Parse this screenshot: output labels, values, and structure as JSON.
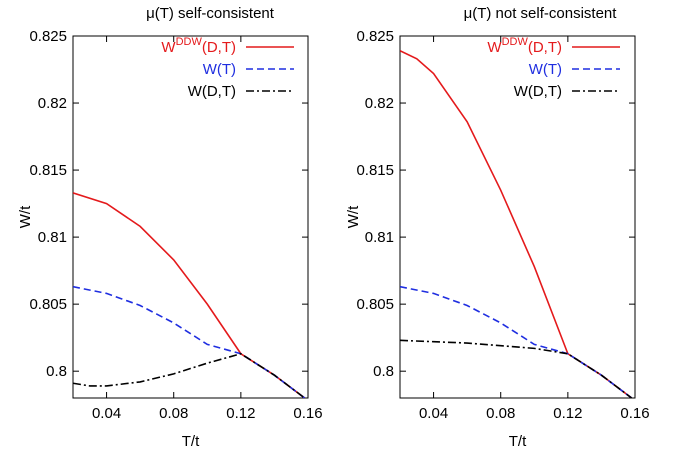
{
  "chart_data": [
    {
      "type": "line",
      "title": "μ(T) self-consistent",
      "xlabel": "T/t",
      "ylabel": "W/t",
      "xlim": [
        0.02,
        0.16
      ],
      "ylim": [
        0.798,
        0.825
      ],
      "xticks": [
        0.04,
        0.08,
        0.12,
        0.16
      ],
      "xtick_labels": [
        "0.04",
        "0.08",
        "0.12",
        "0.16"
      ],
      "yticks": [
        0.8,
        0.805,
        0.81,
        0.815,
        0.82,
        0.825
      ],
      "ytick_labels": [
        "0.8",
        "0.805",
        "0.81",
        "0.815",
        "0.82",
        "0.825"
      ],
      "grid": false,
      "legend_position": "top-right",
      "series": [
        {
          "name": "W^{DDW}(D,T)",
          "name_base": "W",
          "name_sup": "DDW",
          "name_tail": "(D,T)",
          "color": "#e41a1c",
          "style": "solid",
          "points": [
            [
              0.02,
              0.8133
            ],
            [
              0.04,
              0.8125
            ],
            [
              0.06,
              0.8108
            ],
            [
              0.08,
              0.8083
            ],
            [
              0.1,
              0.805
            ],
            [
              0.12,
              0.8013
            ],
            [
              0.14,
              0.7997
            ],
            [
              0.158,
              0.798
            ]
          ]
        },
        {
          "name": "W(T)",
          "color": "#1f2ee0",
          "style": "dashed",
          "points": [
            [
              0.02,
              0.8063
            ],
            [
              0.04,
              0.8058
            ],
            [
              0.06,
              0.8049
            ],
            [
              0.08,
              0.8036
            ],
            [
              0.1,
              0.802
            ],
            [
              0.12,
              0.8013
            ],
            [
              0.14,
              0.7997
            ],
            [
              0.158,
              0.798
            ]
          ]
        },
        {
          "name": "W(D,T)",
          "color": "#000000",
          "style": "dashdot",
          "points": [
            [
              0.02,
              0.7991
            ],
            [
              0.03,
              0.7989
            ],
            [
              0.04,
              0.7989
            ],
            [
              0.06,
              0.7992
            ],
            [
              0.08,
              0.7998
            ],
            [
              0.1,
              0.8006
            ],
            [
              0.12,
              0.8013
            ],
            [
              0.14,
              0.7997
            ],
            [
              0.158,
              0.798
            ]
          ]
        }
      ]
    },
    {
      "type": "line",
      "title": "μ(T) not self-consistent",
      "xlabel": "T/t",
      "ylabel": "W/t",
      "xlim": [
        0.02,
        0.16
      ],
      "ylim": [
        0.798,
        0.825
      ],
      "xticks": [
        0.04,
        0.08,
        0.12,
        0.16
      ],
      "xtick_labels": [
        "0.04",
        "0.08",
        "0.12",
        "0.16"
      ],
      "yticks": [
        0.8,
        0.805,
        0.81,
        0.815,
        0.82,
        0.825
      ],
      "ytick_labels": [
        "0.8",
        "0.805",
        "0.81",
        "0.815",
        "0.82",
        "0.825"
      ],
      "grid": false,
      "legend_position": "top-right",
      "series": [
        {
          "name": "W^{DDW}(D,T)",
          "name_base": "W",
          "name_sup": "DDW",
          "name_tail": "(D,T)",
          "color": "#e41a1c",
          "style": "solid",
          "points": [
            [
              0.02,
              0.8239
            ],
            [
              0.03,
              0.8233
            ],
            [
              0.04,
              0.8222
            ],
            [
              0.06,
              0.8186
            ],
            [
              0.08,
              0.8135
            ],
            [
              0.1,
              0.8078
            ],
            [
              0.12,
              0.8013
            ],
            [
              0.14,
              0.7997
            ],
            [
              0.158,
              0.798
            ]
          ]
        },
        {
          "name": "W(T)",
          "color": "#1f2ee0",
          "style": "dashed",
          "points": [
            [
              0.02,
              0.8063
            ],
            [
              0.04,
              0.8058
            ],
            [
              0.06,
              0.8049
            ],
            [
              0.08,
              0.8036
            ],
            [
              0.1,
              0.802
            ],
            [
              0.12,
              0.8013
            ],
            [
              0.14,
              0.7997
            ],
            [
              0.158,
              0.798
            ]
          ]
        },
        {
          "name": "W(D,T)",
          "color": "#000000",
          "style": "dashdot",
          "points": [
            [
              0.02,
              0.8023
            ],
            [
              0.04,
              0.8022
            ],
            [
              0.06,
              0.8021
            ],
            [
              0.08,
              0.8019
            ],
            [
              0.1,
              0.8017
            ],
            [
              0.12,
              0.8013
            ],
            [
              0.14,
              0.7997
            ],
            [
              0.158,
              0.798
            ]
          ]
        }
      ]
    }
  ]
}
